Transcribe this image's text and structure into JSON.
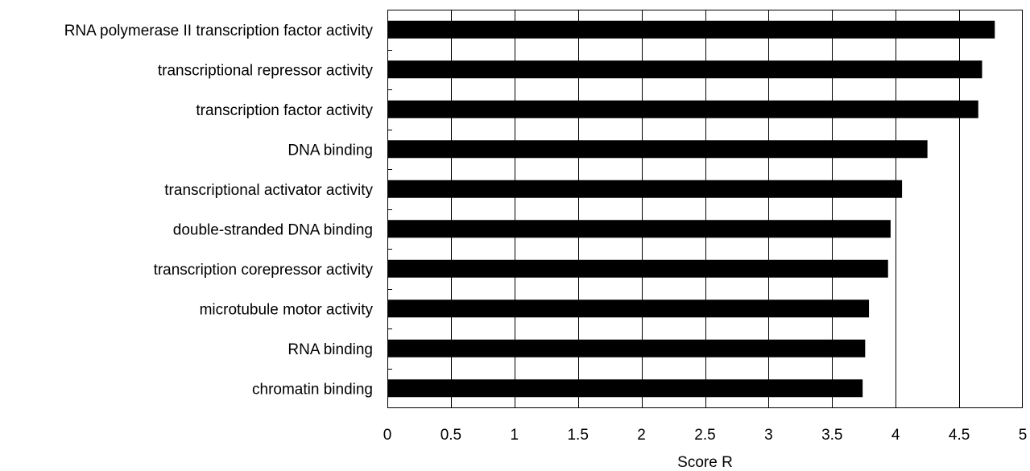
{
  "chart_data": {
    "type": "bar",
    "orientation": "horizontal",
    "categories": [
      "RNA polymerase II transcription factor activity",
      "transcriptional repressor activity",
      "transcription factor activity",
      "DNA binding",
      "transcriptional activator activity",
      "double-stranded DNA binding",
      "transcription corepressor activity",
      "microtubule motor activity",
      "RNA binding",
      "chromatin binding"
    ],
    "values": [
      4.78,
      4.68,
      4.65,
      4.25,
      4.05,
      3.96,
      3.94,
      3.79,
      3.76,
      3.74
    ],
    "xlabel": "Score R",
    "ylabel": "",
    "title": "",
    "xlim": [
      0,
      5
    ],
    "xticks": [
      0,
      0.5,
      1,
      1.5,
      2,
      2.5,
      3,
      3.5,
      4,
      4.5,
      5
    ],
    "xtick_labels": [
      "0",
      "0.5",
      "1",
      "1.5",
      "2",
      "2.5",
      "3",
      "3.5",
      "4",
      "4.5",
      "5"
    ],
    "grid": "vertical",
    "bar_color": "#000000",
    "legend": "none"
  }
}
